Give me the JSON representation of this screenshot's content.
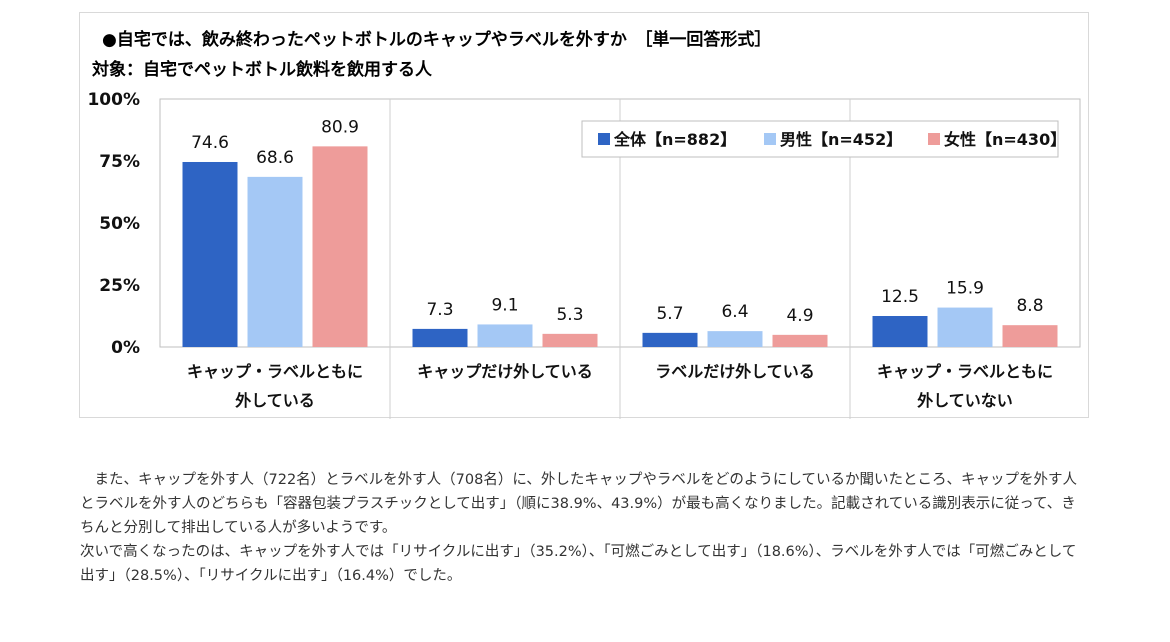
{
  "chart_data": {
    "type": "bar",
    "title": "●自宅では、飲み終わったペットボトルのキャップやラベルを外すか　［単一回答形式］",
    "subtitle": "対象：自宅でペットボトル飲料を飲用する人",
    "categories": [
      [
        "キャップ・ラベルともに",
        "外している"
      ],
      [
        "キャップだけ外している"
      ],
      [
        "ラベルだけ外している"
      ],
      [
        "キャップ・ラベルともに",
        "外していない"
      ]
    ],
    "series": [
      {
        "name": "全体【n=882】",
        "values": [
          74.6,
          7.3,
          5.7,
          12.5
        ],
        "color": "#2e64c4"
      },
      {
        "name": "男性【n=452】",
        "values": [
          68.6,
          9.1,
          6.4,
          15.9
        ],
        "color": "#a4c8f5"
      },
      {
        "name": "女性【n=430】",
        "values": [
          80.9,
          5.3,
          4.9,
          8.8
        ],
        "color": "#ee9c9a"
      }
    ],
    "ylim": [
      0,
      100
    ],
    "yticks": [
      0,
      25,
      50,
      75,
      100
    ],
    "ytick_labels": [
      "0%",
      "25%",
      "50%",
      "75%",
      "100%"
    ],
    "xlabel": "",
    "ylabel": "",
    "legend_position": "top-right",
    "grid": "vertical category separators"
  },
  "body": {
    "paragraph1": "また、キャップを外す人（722名）とラベルを外す人（708名）に、外したキャップやラベルをどのようにしているか聞いたところ、キャップを外す人とラベルを外す人のどちらも「容器包装プラスチックとして出す」（順に38.9%、43.9%）が最も高くなりました。記載されている識別表示に従って、きちんと分別して排出している人が多いようです。",
    "paragraph2": "次いで高くなったのは、キャップを外す人では「リサイクルに出す」（35.2%）、「可燃ごみとして出す」（18.6%）、ラベルを外す人では「可燃ごみとして出す」（28.5%）、「リサイクルに出す」（16.4%）でした。"
  }
}
